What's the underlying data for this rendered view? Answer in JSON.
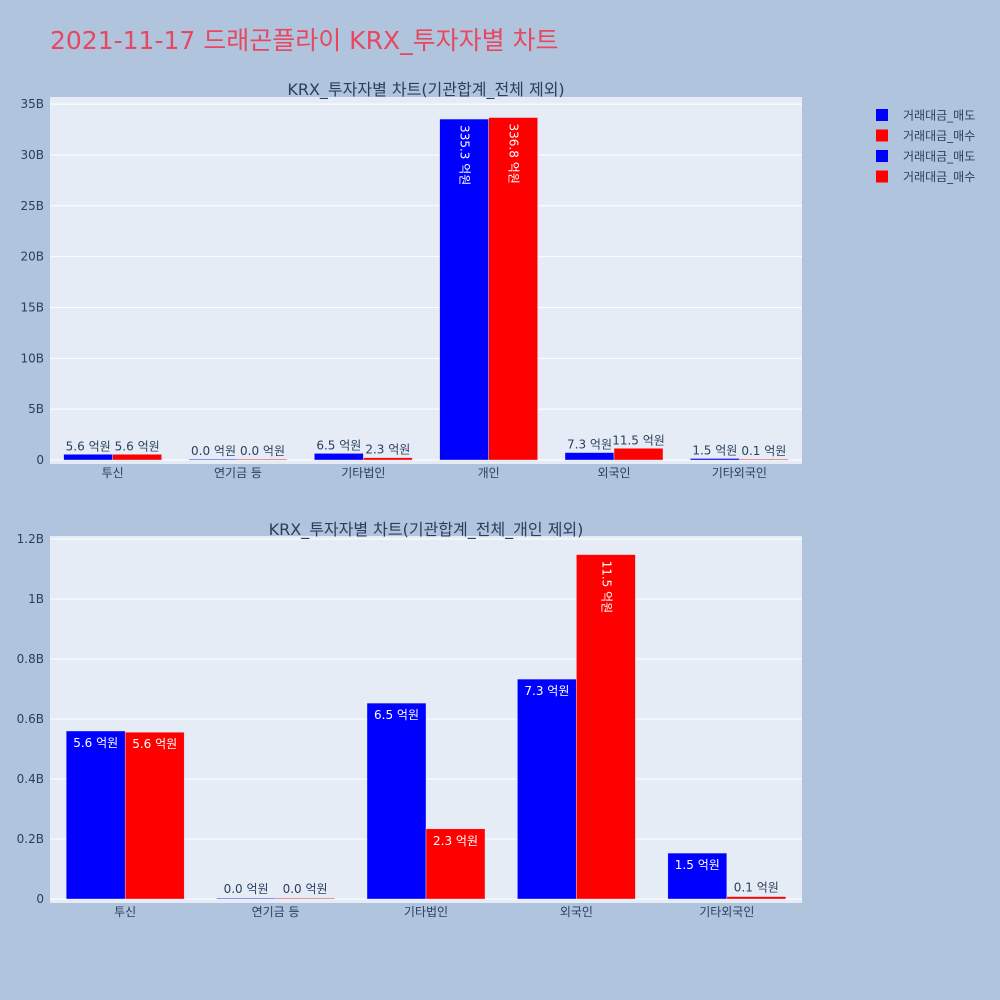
{
  "page_title": "2021-11-17 드래곤플라이 KRX_투자자별 차트",
  "colors": {
    "background": "#b0c4de",
    "plot_bg": "#e5ecf6",
    "title": "#e8475f",
    "sell": "#0000ff",
    "buy": "#ff0000"
  },
  "legend": {
    "position": "top-right",
    "items": [
      {
        "label": "거래대금_매도",
        "color": "#0000ff"
      },
      {
        "label": "거래대금_매수",
        "color": "#ff0000"
      },
      {
        "label": "거래대금_매도",
        "color": "#0000ff"
      },
      {
        "label": "거래대금_매수",
        "color": "#ff0000"
      }
    ]
  },
  "chart_data": [
    {
      "type": "bar",
      "title": "KRX_투자자별 차트(기관합계_전체 제외)",
      "categories": [
        "투신",
        "연기금 등",
        "기타법인",
        "개인",
        "외국인",
        "기타외국인"
      ],
      "ylim": [
        0,
        35.7
      ],
      "yticks": [
        0,
        5,
        10,
        15,
        20,
        25,
        30,
        35
      ],
      "ytick_labels": [
        "0",
        "5B",
        "10B",
        "15B",
        "20B",
        "25B",
        "30B",
        "35B"
      ],
      "grid": true,
      "series": [
        {
          "name": "거래대금_매도",
          "color": "#0000ff",
          "values": [
            0.56,
            0.0,
            0.65,
            33.53,
            0.73,
            0.15
          ],
          "labels": [
            "5.6 억원",
            "0.0 억원",
            "6.5 억원",
            "335.3 억원",
            "7.3 억원",
            "1.5 억원"
          ]
        },
        {
          "name": "거래대금_매수",
          "color": "#ff0000",
          "values": [
            0.56,
            0.0,
            0.23,
            33.68,
            1.15,
            0.01
          ],
          "labels": [
            "5.6 억원",
            "0.0 억원",
            "2.3 억원",
            "336.8 억원",
            "11.5 억원",
            "0.1 억원"
          ]
        }
      ]
    },
    {
      "type": "bar",
      "title": "KRX_투자자별 차트(기관합계_전체_개인 제외)",
      "categories": [
        "투신",
        "연기금 등",
        "기타법인",
        "외국인",
        "기타외국인"
      ],
      "ylim": [
        0,
        1.21
      ],
      "yticks": [
        0,
        0.2,
        0.4,
        0.6,
        0.8,
        1.0,
        1.2
      ],
      "ytick_labels": [
        "0",
        "0.2B",
        "0.4B",
        "0.6B",
        "0.8B",
        "1B",
        "1.2B"
      ],
      "grid": true,
      "series": [
        {
          "name": "거래대금_매도",
          "color": "#0000ff",
          "values": [
            0.56,
            0.002,
            0.653,
            0.733,
            0.153
          ],
          "labels": [
            "5.6 억원",
            "0.0 억원",
            "6.5 억원",
            "7.3 억원",
            "1.5 억원"
          ]
        },
        {
          "name": "거래대금_매수",
          "color": "#ff0000",
          "values": [
            0.556,
            0.002,
            0.234,
            1.148,
            0.008
          ],
          "labels": [
            "5.6 억원",
            "0.0 억원",
            "2.3 억원",
            "11.5 억원",
            "0.1 억원"
          ]
        }
      ]
    }
  ]
}
